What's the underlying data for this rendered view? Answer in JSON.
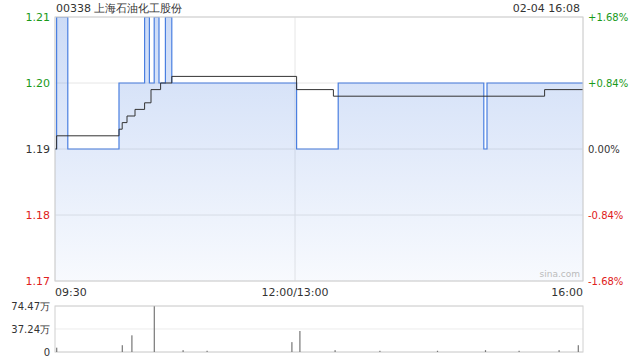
{
  "chart_data": [
    {
      "type": "line",
      "title": "00338 上海石油化工股份",
      "subtitle": "02-04 16:08",
      "annotation": "sina.com",
      "xlim": [
        0,
        330
      ],
      "xticks": [
        {
          "value": 0,
          "label": "09:30"
        },
        {
          "value": 150,
          "label": "12:00/13:00"
        },
        {
          "value": 330,
          "label": "16:00"
        }
      ],
      "ylim": [
        1.17,
        1.21
      ],
      "yticks": [
        1.17,
        1.18,
        1.19,
        {
          "value": 1.2,
          "label": "1.20"
        },
        1.21
      ],
      "y2lim": [
        -1.68,
        1.68
      ],
      "y2ticks": [
        {
          "value": -1.68,
          "label": "-1.68%"
        },
        {
          "value": -0.84,
          "label": "-0.84%"
        },
        {
          "value": 0,
          "label": "0.00%"
        },
        {
          "value": 0.84,
          "label": "+0.84%"
        },
        {
          "value": 1.68,
          "label": "+1.68%"
        }
      ],
      "grid": true,
      "series": [
        {
          "color": "#4a7fe0",
          "line_style": "step",
          "x": [
            0,
            1,
            8,
            40,
            56,
            59,
            62,
            65,
            69,
            73,
            151,
            177,
            268,
            270,
            330
          ],
          "values": [
            1.19,
            1.21,
            1.19,
            1.2,
            1.21,
            1.2,
            1.21,
            1.2,
            1.21,
            1.2,
            1.19,
            1.2,
            1.19,
            1.2,
            1.2
          ]
        },
        {
          "color": "#333333",
          "line_style": "step",
          "x": [
            0,
            1,
            40,
            42,
            45,
            50,
            56,
            60,
            66,
            73,
            151,
            174,
            306,
            330
          ],
          "values": [
            1.19,
            1.192,
            1.193,
            1.194,
            1.195,
            1.196,
            1.197,
            1.199,
            1.2,
            1.201,
            1.199,
            1.198,
            1.199,
            1.199
          ]
        }
      ]
    },
    {
      "type": "bar",
      "xlim": [
        0,
        330
      ],
      "ylim": [
        0,
        74.47
      ],
      "yticks": [
        0,
        {
          "value": 37.24,
          "label": "37.24万"
        },
        {
          "value": 74.47,
          "label": "74.47万"
        }
      ],
      "tick_labels": "y",
      "color": "#777777",
      "x": [
        1,
        42,
        48,
        62,
        80,
        95,
        148,
        153,
        175,
        203,
        239,
        269,
        290,
        315,
        327
      ],
      "values": [
        7,
        11,
        27,
        74,
        3,
        2,
        16,
        34,
        3,
        2,
        2,
        3,
        2,
        3,
        11
      ]
    }
  ]
}
